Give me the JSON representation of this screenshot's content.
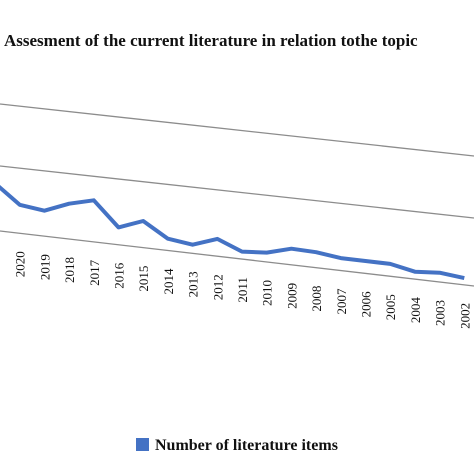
{
  "chart_data": {
    "type": "line",
    "title": "Assesment of the current literature in relation tothe topic",
    "categories": [
      null,
      "2020",
      "2019",
      "2018",
      "2017",
      "2016",
      "2015",
      "2014",
      "2013",
      "2012",
      "2011",
      "2010",
      "2009",
      "2008",
      "2007",
      "2006",
      "2005",
      "2004",
      "2003",
      "2002"
    ],
    "series": [
      {
        "name": "Number of literature items",
        "color": "#4472c4",
        "values": [
          7.6,
          4.6,
          4.1,
          5.7,
          6.7,
          2.8,
          4.3,
          1.9,
          1.4,
          2.8,
          1.2,
          1.5,
          2.6,
          2.5,
          2.0,
          2.0,
          2.0,
          1.2,
          1.5,
          1.1
        ]
      }
    ],
    "ylim": [
      0,
      20
    ]
  }
}
